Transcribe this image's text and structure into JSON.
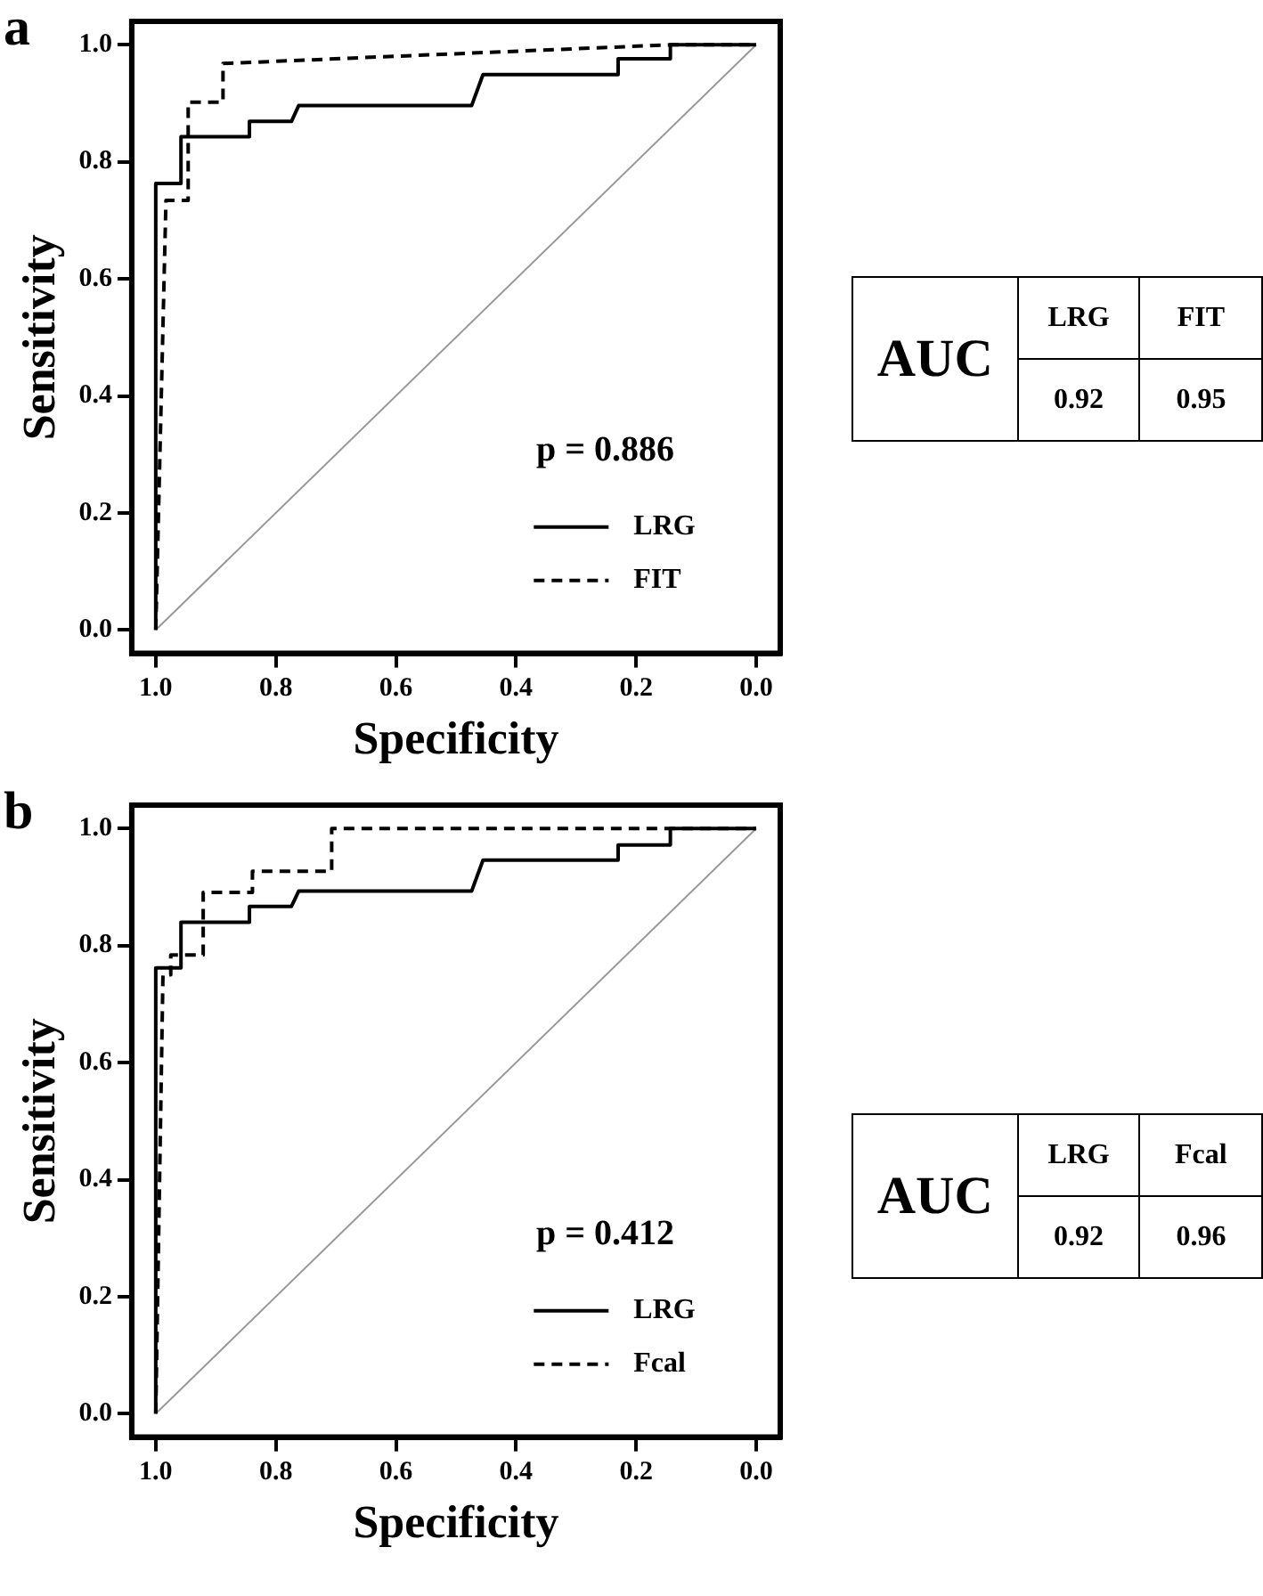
{
  "chart_data": [
    {
      "type": "line",
      "title": "a",
      "xlabel": "Specificity",
      "ylabel": "Sensitivity",
      "annotations": [
        "p = 0.886"
      ],
      "legend": "bottom right",
      "grid": false,
      "marker": "none",
      "xlim": [
        1.04,
        -0.04
      ],
      "ylim": [
        -0.04,
        1.04
      ],
      "xticks": [
        {
          "value": 1,
          "label": "1.0"
        },
        {
          "value": 0.8,
          "label": "0.8"
        },
        {
          "value": 0.6,
          "label": "0.6"
        },
        {
          "value": 0.4,
          "label": "0.4"
        },
        {
          "value": 0.2,
          "label": "0.2"
        },
        {
          "value": 0,
          "label": "0.0"
        }
      ],
      "yticks": [
        {
          "value": 0,
          "label": "0.0"
        },
        {
          "value": 0.2,
          "label": "0.2"
        },
        {
          "value": 0.4,
          "label": "0.4"
        },
        {
          "value": 0.6,
          "label": "0.6"
        },
        {
          "value": 0.8,
          "label": "0.8"
        },
        {
          "value": 1,
          "label": "1.0"
        }
      ],
      "series": [
        {
          "name": "LRG",
          "color": "#000000",
          "line_style": "solid",
          "x": [
            1.0,
            1.0,
            0.958,
            0.958,
            0.844,
            0.844,
            0.774,
            0.762,
            0.474,
            0.455,
            0.23,
            0.23,
            0.143,
            0.143,
            0.0
          ],
          "values": [
            0.0,
            0.763,
            0.763,
            0.843,
            0.843,
            0.869,
            0.869,
            0.896,
            0.896,
            0.949,
            0.949,
            0.976,
            0.976,
            1.0,
            1.0
          ]
        },
        {
          "name": "FIT",
          "color": "#000000",
          "line_style": "dashed",
          "x": [
            1.0,
            0.983,
            0.946,
            0.946,
            0.888,
            0.888,
            0.143,
            0.0
          ],
          "values": [
            0.0,
            0.734,
            0.734,
            0.902,
            0.902,
            0.968,
            1.0,
            1.0
          ]
        },
        {
          "color": "#999999",
          "line_style": "solid",
          "x": [
            1.0,
            0.0
          ],
          "values": [
            0.0,
            1.0
          ]
        }
      ]
    },
    {
      "type": "other",
      "title": "AUC",
      "categories": [
        "LRG",
        "FIT"
      ],
      "values": [
        0.92,
        0.95
      ],
      "data_labels": true
    },
    {
      "type": "line",
      "title": "b",
      "xlabel": "Specificity",
      "ylabel": "Sensitivity",
      "annotations": [
        "p = 0.412"
      ],
      "legend": "bottom right",
      "grid": false,
      "marker": "none",
      "xlim": [
        1.04,
        -0.04
      ],
      "ylim": [
        -0.04,
        1.04
      ],
      "xticks": [
        {
          "value": 1,
          "label": "1.0"
        },
        {
          "value": 0.8,
          "label": "0.8"
        },
        {
          "value": 0.6,
          "label": "0.6"
        },
        {
          "value": 0.4,
          "label": "0.4"
        },
        {
          "value": 0.2,
          "label": "0.2"
        },
        {
          "value": 0,
          "label": "0.0"
        }
      ],
      "yticks": [
        {
          "value": 0,
          "label": "0.0"
        },
        {
          "value": 0.2,
          "label": "0.2"
        },
        {
          "value": 0.4,
          "label": "0.4"
        },
        {
          "value": 0.6,
          "label": "0.6"
        },
        {
          "value": 0.8,
          "label": "0.8"
        },
        {
          "value": 1,
          "label": "1.0"
        }
      ],
      "series": [
        {
          "name": "LRG",
          "color": "#000000",
          "line_style": "solid",
          "x": [
            1.0,
            1.0,
            0.958,
            0.958,
            0.844,
            0.844,
            0.774,
            0.762,
            0.474,
            0.455,
            0.23,
            0.23,
            0.143,
            0.143,
            0.0
          ],
          "values": [
            0.0,
            0.762,
            0.762,
            0.84,
            0.84,
            0.867,
            0.867,
            0.893,
            0.893,
            0.946,
            0.946,
            0.972,
            0.972,
            1.0,
            1.0
          ]
        },
        {
          "name": "Fcal",
          "color": "#000000",
          "line_style": "dashed",
          "x": [
            1.0,
            0.988,
            0.975,
            0.975,
            0.921,
            0.921,
            0.839,
            0.839,
            0.707,
            0.707,
            0.0
          ],
          "values": [
            0.0,
            0.75,
            0.75,
            0.784,
            0.784,
            0.891,
            0.891,
            0.927,
            0.927,
            1.0,
            1.0
          ]
        },
        {
          "color": "#999999",
          "line_style": "solid",
          "x": [
            1.0,
            0.0
          ],
          "values": [
            0.0,
            1.0
          ]
        }
      ]
    },
    {
      "type": "other",
      "title": "AUC",
      "categories": [
        "LRG",
        "Fcal"
      ],
      "values": [
        0.92,
        0.96
      ],
      "data_labels": true
    }
  ]
}
